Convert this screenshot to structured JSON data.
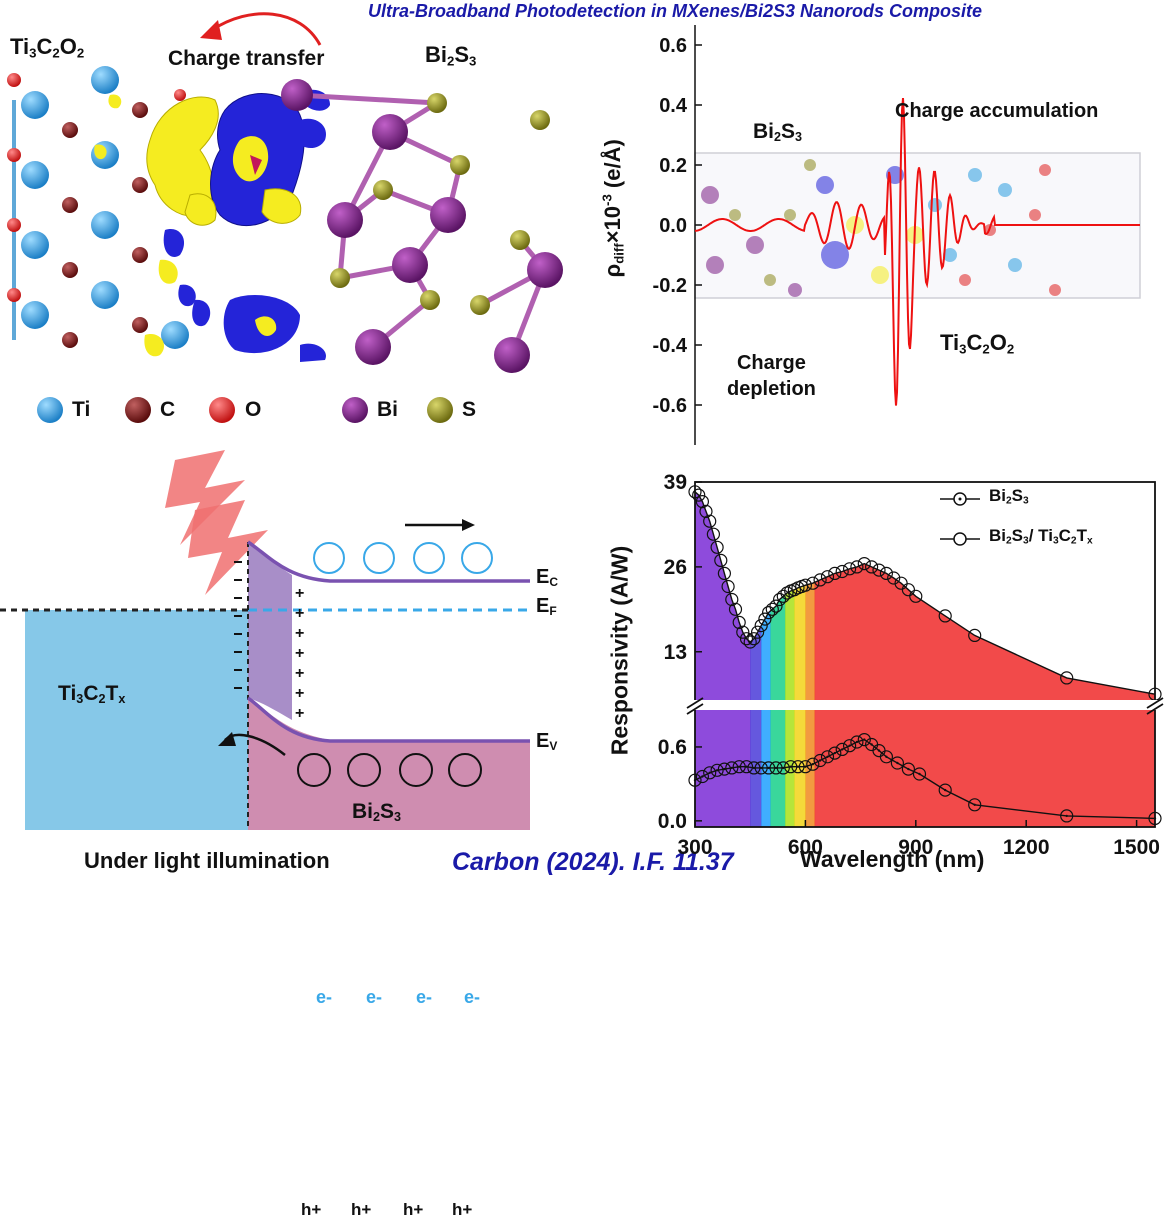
{
  "header": {
    "title": "Ultra-Broadband Photodetection in MXenes/Bi2S3 Nanorods Composite"
  },
  "footer": {
    "citation": "Carbon (2024). I.F. 11.37"
  },
  "panel_a": {
    "left_label_main": "Ti",
    "left_label_sub1": "3",
    "left_label_c": "C",
    "left_label_sub2": "2",
    "left_label_o": "O",
    "left_label_sub3": "2",
    "transfer_label": "Charge transfer",
    "right_label_main": "Bi",
    "right_label_sub1": "2",
    "right_label_s": "S",
    "right_label_sub2": "3",
    "legend": [
      {
        "symbol": "Ti",
        "color": "#2b9fe0"
      },
      {
        "symbol": "C",
        "color": "#7a1a1a"
      },
      {
        "symbol": "O",
        "color": "#e02020"
      },
      {
        "symbol": "Bi",
        "color": "#7b1f86"
      },
      {
        "symbol": "S",
        "color": "#8c8a1e"
      }
    ]
  },
  "panel_b": {
    "ylabel_main": "ρ",
    "ylabel_sub": "diff",
    "ylabel_rest": "×10",
    "ylabel_sup": "-3",
    "ylabel_unit": " (e/Å)",
    "yticks": [
      "0.6",
      "0.4",
      "0.2",
      "0.0",
      "-0.2",
      "-0.4",
      "-0.6"
    ],
    "label_accum": "Charge accumulation",
    "label_bi_main": "Bi",
    "label_bi_sub1": "2",
    "label_bi_s": "S",
    "label_bi_sub2": "3",
    "label_depl1": "Charge",
    "label_depl2": "depletion",
    "label_ti_main": "Ti",
    "label_ti_sub1": "3",
    "label_ti_c": "C",
    "label_ti_sub2": "2",
    "label_ti_o": "O",
    "label_ti_sub3": "2"
  },
  "panel_c": {
    "ec_main": "E",
    "ec_sub": "C",
    "ef_main": "E",
    "ef_sub": "F",
    "ev_main": "E",
    "ev_sub": "V",
    "ti_main": "Ti",
    "ti_sub1": "3",
    "ti_c": "C",
    "ti_sub2": "2",
    "ti_t": "T",
    "ti_sub3": "x",
    "bi_main": "Bi",
    "bi_sub1": "2",
    "bi_s": "S",
    "bi_sub2": "3",
    "electron": "e-",
    "hole": "h+",
    "caption": "Under light illumination"
  },
  "chart_data": {
    "type": "line",
    "xlabel": "Wavelength (nm)",
    "ylabel": "Responsivity (A/W)",
    "xlim": [
      300,
      1550
    ],
    "xticks": [
      "300",
      "600",
      "900",
      "1200",
      "1500"
    ],
    "broken_axis": true,
    "upper_yticks": [
      "39",
      "26",
      "13"
    ],
    "lower_yticks": [
      "0.6",
      "0.0"
    ],
    "upper_ylim": [
      5,
      39
    ],
    "lower_ylim": [
      -0.05,
      0.9
    ],
    "series": [
      {
        "name_main": "Bi",
        "name_sub1": "2",
        "name_s": "S",
        "name_sub2": "3",
        "marker": "circle-dot",
        "panel": "lower",
        "x": [
          300,
          320,
          340,
          360,
          380,
          400,
          420,
          440,
          460,
          480,
          500,
          520,
          540,
          560,
          580,
          600,
          620,
          640,
          660,
          680,
          700,
          720,
          740,
          760,
          780,
          800,
          820,
          850,
          880,
          910,
          980,
          1060,
          1310,
          1550
        ],
        "y": [
          0.33,
          0.36,
          0.39,
          0.41,
          0.42,
          0.43,
          0.44,
          0.44,
          0.43,
          0.43,
          0.43,
          0.43,
          0.43,
          0.44,
          0.44,
          0.44,
          0.46,
          0.49,
          0.52,
          0.55,
          0.58,
          0.61,
          0.64,
          0.66,
          0.62,
          0.57,
          0.52,
          0.47,
          0.42,
          0.38,
          0.25,
          0.13,
          0.04,
          0.02
        ]
      },
      {
        "name_main": "Bi",
        "name_sub1": "2",
        "name_s": "S",
        "name_sub2": "3",
        "name_extra": "/ Ti",
        "name_sub3": "3",
        "name_c": "C",
        "name_sub4": "2",
        "name_t": "T",
        "name_sub5": "x",
        "marker": "circle",
        "panel": "upper",
        "x": [
          300,
          310,
          320,
          330,
          340,
          350,
          360,
          370,
          380,
          390,
          400,
          410,
          420,
          430,
          440,
          450,
          460,
          470,
          480,
          490,
          500,
          510,
          520,
          530,
          540,
          550,
          560,
          570,
          580,
          590,
          600,
          620,
          640,
          660,
          680,
          700,
          720,
          740,
          760,
          780,
          800,
          820,
          840,
          860,
          880,
          900,
          980,
          1060,
          1310,
          1550
        ],
        "y": [
          37.5,
          37,
          36,
          34.5,
          33,
          31,
          29,
          27,
          25,
          23,
          21,
          19.5,
          17.5,
          16,
          15,
          14.5,
          15,
          16,
          17,
          18,
          19,
          19.5,
          20,
          21,
          21.5,
          22,
          22.3,
          22.5,
          22.8,
          23,
          23.2,
          23.5,
          24,
          24.5,
          25,
          25.3,
          25.7,
          26,
          26.5,
          26,
          25.5,
          25,
          24.3,
          23.5,
          22.5,
          21.5,
          18.5,
          15.5,
          9,
          6.5
        ]
      }
    ],
    "spectrum_colors": [
      "#7a2bd6",
      "#4a3bd8",
      "#1fa0ff",
      "#18d08a",
      "#a8e018",
      "#f2d418",
      "#f08a1e",
      "#f02a2a"
    ]
  }
}
